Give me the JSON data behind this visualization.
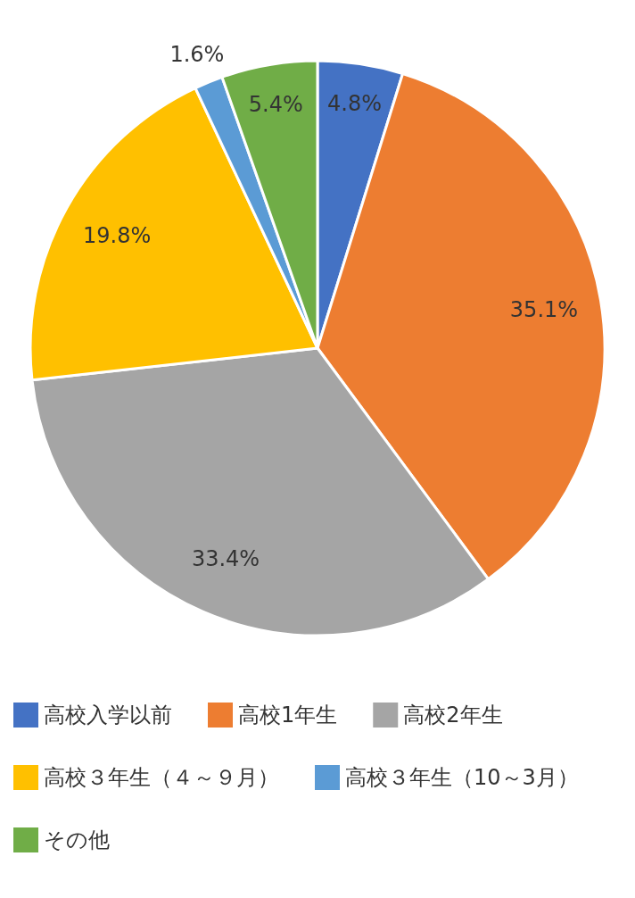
{
  "chart_data": {
    "type": "pie",
    "categories": [
      "高校入学以前",
      "高校1年生",
      "高校2年生",
      "高校３年生（４～９月）",
      "高校３年生（10～3月）",
      "その他"
    ],
    "values": [
      4.8,
      35.1,
      33.4,
      19.8,
      1.6,
      5.4
    ],
    "colors": [
      "#4472c4",
      "#ed7d31",
      "#a5a5a5",
      "#ffc000",
      "#5b9bd5",
      "#70ad47"
    ],
    "value_labels": [
      "4.8%",
      "35.1%",
      "33.4%",
      "19.8%",
      "1.6%",
      "5.4%"
    ],
    "legend": "bottom"
  }
}
